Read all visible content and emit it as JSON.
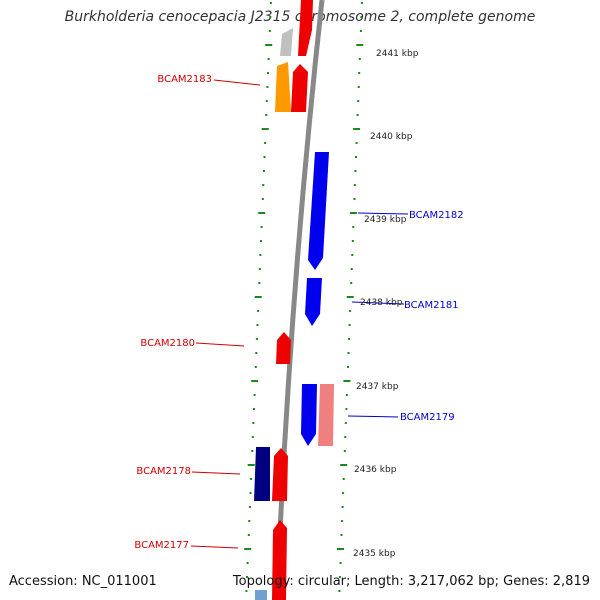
{
  "title": "Burkholderia cenocepacia J2315 chromosome 2, complete genome",
  "footer": {
    "accession": "Accession: NC_011001",
    "summary": "Topology: circular; Length: 3,217,062 bp; Genes: 2,819"
  },
  "colors": {
    "backbone": "#888888",
    "tick": "#1a8a1a",
    "label_red": "#d00000",
    "label_blue": "#0000cc",
    "gene_red": "#ee0000",
    "gene_blue": "#0000ee",
    "gene_navy": "#000080",
    "gene_orange": "#ff9900",
    "gene_grey": "#c0c0c0",
    "gene_pink": "#f08080",
    "gene_lightblue": "#6fa0d0"
  },
  "ruler": [
    "2441 kbp",
    "2440 kbp",
    "2439 kbp",
    "2438 kbp",
    "2437 kbp",
    "2436 kbp",
    "2435 kbp"
  ],
  "gene_labels": [
    {
      "text": "BCAM2183",
      "side": "left"
    },
    {
      "text": "BCAM2182",
      "side": "right"
    },
    {
      "text": "BCAM2181",
      "side": "right"
    },
    {
      "text": "BCAM2180",
      "side": "left"
    },
    {
      "text": "BCAM2179",
      "side": "right"
    },
    {
      "text": "BCAM2178",
      "side": "left"
    },
    {
      "text": "BCAM2177",
      "side": "left"
    }
  ]
}
